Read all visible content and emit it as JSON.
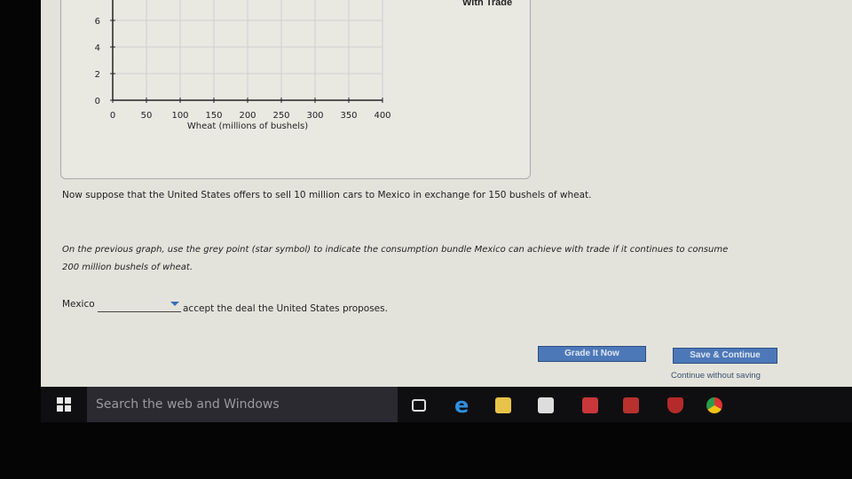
{
  "chart": {
    "legend_label": "With Trade",
    "x_axis_label": "Wheat (millions of bushels)",
    "x_ticks": [
      "0",
      "50",
      "100",
      "150",
      "200",
      "250",
      "300",
      "350",
      "400"
    ],
    "y_ticks": [
      "0",
      "2",
      "4",
      "6"
    ]
  },
  "question": {
    "offer_text": "Now suppose that the United States offers to sell 10 million cars to Mexico in exchange for 150 bushels of wheat.",
    "instruction_line1": "On the previous graph, use the grey point (star symbol) to indicate the consumption bundle Mexico can achieve with trade if it continues to consume",
    "instruction_line2": "200 million bushels of wheat.",
    "answer_prefix": "Mexico",
    "dropdown_value": "",
    "answer_suffix": "accept the deal the United States proposes."
  },
  "buttons": {
    "grade": "Grade It Now",
    "save": "Save & Continue",
    "continue_link": "Continue without saving"
  },
  "taskbar": {
    "search_placeholder": "Search the web and Windows",
    "icons": [
      "task-view-icon",
      "edge-icon",
      "file-explorer-icon",
      "store-icon",
      "reader-icon",
      "app-icon",
      "mcafee-icon",
      "chrome-icon"
    ]
  }
}
